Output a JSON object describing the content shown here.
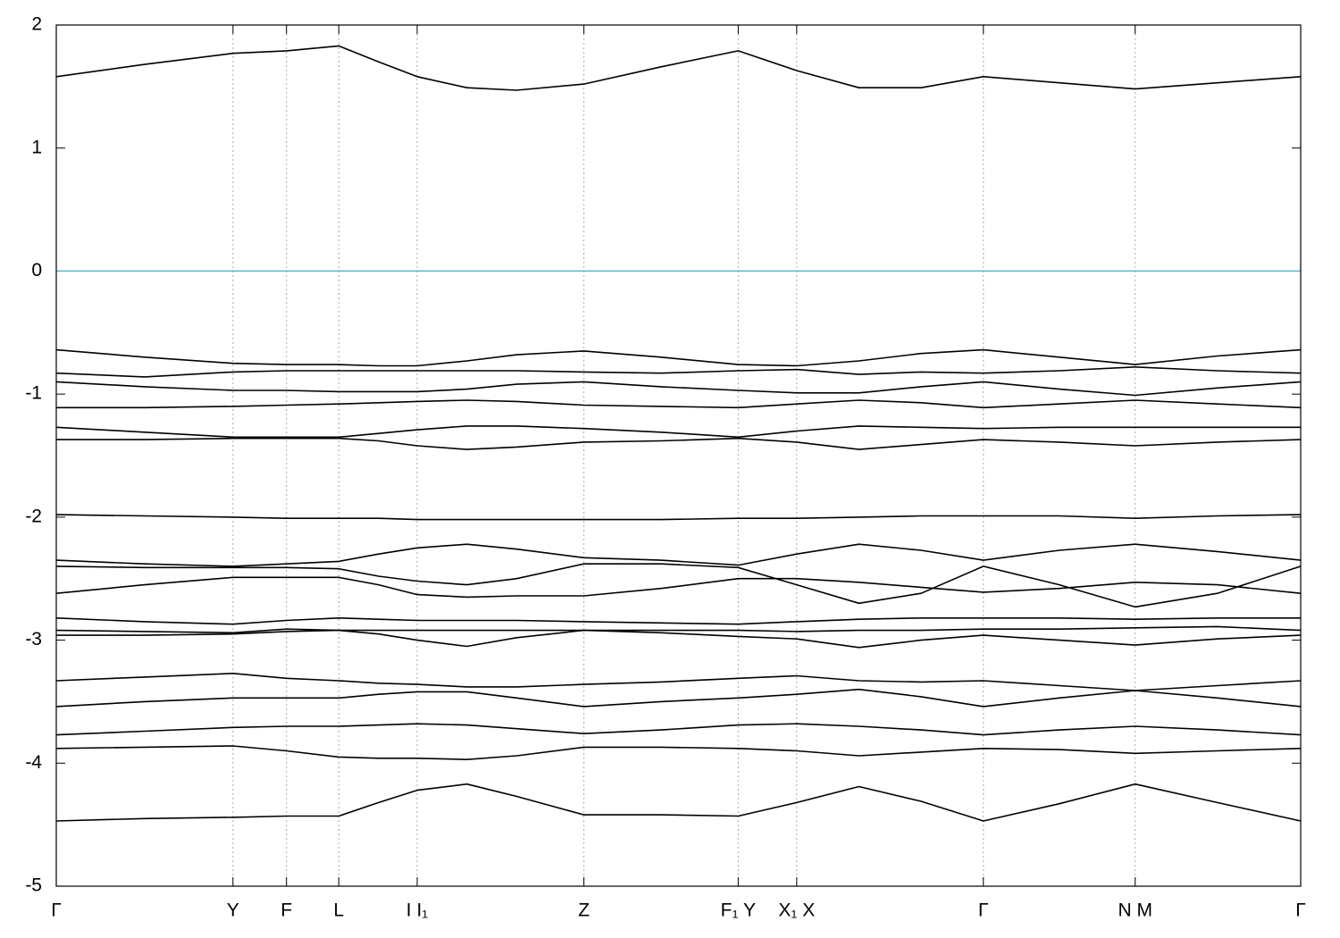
{
  "chart_data": {
    "type": "line",
    "x": [
      0,
      0.071,
      0.142,
      0.185,
      0.227,
      0.259,
      0.29,
      0.33,
      0.37,
      0.424,
      0.486,
      0.548,
      0.595,
      0.645,
      0.695,
      0.745,
      0.806,
      0.867,
      0.933,
      1
    ],
    "xlim": [
      0,
      1
    ],
    "xticks": [
      {
        "value": 0,
        "label": "Γ"
      },
      {
        "value": 0.142,
        "label": "Y"
      },
      {
        "value": 0.185,
        "label": "F"
      },
      {
        "value": 0.227,
        "label": "L"
      },
      {
        "value": 0.29,
        "label": "I  I₁"
      },
      {
        "value": 0.424,
        "label": "Z"
      },
      {
        "value": 0.548,
        "label": "F₁ Y"
      },
      {
        "value": 0.595,
        "label": "X₁ X"
      },
      {
        "value": 0.745,
        "label": "Γ"
      },
      {
        "value": 0.867,
        "label": "N M"
      },
      {
        "value": 1,
        "label": "Γ"
      }
    ],
    "ylim": [
      -5,
      2
    ],
    "yticks": [
      -5,
      -4,
      -3,
      -2,
      -1,
      0,
      1,
      2
    ],
    "grid": true,
    "line_color": "#000000",
    "hline": {
      "value": 0,
      "color": "#5fb4cc"
    },
    "series": [
      {
        "values": [
          1.58,
          1.68,
          1.77,
          1.79,
          1.83,
          1.7,
          1.58,
          1.49,
          1.47,
          1.52,
          1.66,
          1.79,
          1.63,
          1.49,
          1.49,
          1.58,
          1.53,
          1.48,
          1.53,
          1.58
        ]
      },
      {
        "values": [
          -0.64,
          -0.7,
          -0.75,
          -0.76,
          -0.76,
          -0.77,
          -0.77,
          -0.73,
          -0.68,
          -0.65,
          -0.7,
          -0.76,
          -0.77,
          -0.73,
          -0.67,
          -0.64,
          -0.7,
          -0.76,
          -0.69,
          -0.64
        ]
      },
      {
        "values": [
          -0.83,
          -0.86,
          -0.82,
          -0.81,
          -0.81,
          -0.81,
          -0.81,
          -0.81,
          -0.81,
          -0.82,
          -0.83,
          -0.81,
          -0.8,
          -0.84,
          -0.82,
          -0.83,
          -0.81,
          -0.78,
          -0.81,
          -0.83
        ]
      },
      {
        "values": [
          -0.9,
          -0.94,
          -0.97,
          -0.97,
          -0.98,
          -0.98,
          -0.98,
          -0.96,
          -0.92,
          -0.9,
          -0.94,
          -0.97,
          -0.99,
          -0.99,
          -0.94,
          -0.9,
          -0.96,
          -1.01,
          -0.95,
          -0.9
        ]
      },
      {
        "values": [
          -1.11,
          -1.11,
          -1.1,
          -1.09,
          -1.08,
          -1.07,
          -1.06,
          -1.05,
          -1.06,
          -1.09,
          -1.1,
          -1.11,
          -1.08,
          -1.05,
          -1.07,
          -1.11,
          -1.08,
          -1.05,
          -1.08,
          -1.11
        ]
      },
      {
        "values": [
          -1.27,
          -1.31,
          -1.35,
          -1.35,
          -1.35,
          -1.32,
          -1.29,
          -1.26,
          -1.26,
          -1.28,
          -1.31,
          -1.35,
          -1.3,
          -1.26,
          -1.27,
          -1.28,
          -1.27,
          -1.27,
          -1.27,
          -1.27
        ]
      },
      {
        "values": [
          -1.37,
          -1.37,
          -1.36,
          -1.36,
          -1.36,
          -1.38,
          -1.42,
          -1.45,
          -1.43,
          -1.39,
          -1.38,
          -1.36,
          -1.39,
          -1.45,
          -1.41,
          -1.37,
          -1.39,
          -1.42,
          -1.39,
          -1.37
        ]
      },
      {
        "values": [
          -1.98,
          -1.99,
          -2.0,
          -2.01,
          -2.01,
          -2.01,
          -2.02,
          -2.02,
          -2.02,
          -2.02,
          -2.02,
          -2.01,
          -2.01,
          -2.0,
          -1.99,
          -1.99,
          -1.99,
          -2.01,
          -1.99,
          -1.98
        ]
      },
      {
        "values": [
          -2.35,
          -2.38,
          -2.4,
          -2.38,
          -2.36,
          -2.3,
          -2.25,
          -2.22,
          -2.26,
          -2.33,
          -2.35,
          -2.39,
          -2.3,
          -2.22,
          -2.27,
          -2.35,
          -2.27,
          -2.22,
          -2.28,
          -2.35
        ]
      },
      {
        "values": [
          -2.4,
          -2.41,
          -2.41,
          -2.41,
          -2.42,
          -2.48,
          -2.52,
          -2.55,
          -2.5,
          -2.38,
          -2.38,
          -2.41,
          -2.55,
          -2.7,
          -2.62,
          -2.4,
          -2.55,
          -2.73,
          -2.62,
          -2.4
        ]
      },
      {
        "values": [
          -2.62,
          -2.55,
          -2.49,
          -2.49,
          -2.49,
          -2.55,
          -2.63,
          -2.65,
          -2.64,
          -2.64,
          -2.58,
          -2.5,
          -2.5,
          -2.53,
          -2.57,
          -2.61,
          -2.58,
          -2.53,
          -2.55,
          -2.62
        ]
      },
      {
        "values": [
          -2.82,
          -2.85,
          -2.87,
          -2.84,
          -2.82,
          -2.83,
          -2.84,
          -2.84,
          -2.84,
          -2.85,
          -2.86,
          -2.87,
          -2.85,
          -2.83,
          -2.82,
          -2.82,
          -2.82,
          -2.83,
          -2.82,
          -2.82
        ]
      },
      {
        "values": [
          -2.92,
          -2.93,
          -2.94,
          -2.91,
          -2.92,
          -2.92,
          -2.92,
          -2.92,
          -2.92,
          -2.92,
          -2.92,
          -2.92,
          -2.93,
          -2.92,
          -2.92,
          -2.91,
          -2.91,
          -2.9,
          -2.89,
          -2.92
        ]
      },
      {
        "values": [
          -2.96,
          -2.96,
          -2.95,
          -2.93,
          -2.92,
          -2.95,
          -3.0,
          -3.05,
          -2.98,
          -2.92,
          -2.94,
          -2.97,
          -2.99,
          -3.06,
          -3.0,
          -2.96,
          -3.0,
          -3.04,
          -2.99,
          -2.96
        ]
      },
      {
        "values": [
          -3.33,
          -3.3,
          -3.27,
          -3.31,
          -3.33,
          -3.35,
          -3.36,
          -3.38,
          -3.38,
          -3.36,
          -3.34,
          -3.31,
          -3.29,
          -3.33,
          -3.34,
          -3.33,
          -3.37,
          -3.41,
          -3.37,
          -3.33
        ]
      },
      {
        "values": [
          -3.54,
          -3.5,
          -3.47,
          -3.47,
          -3.47,
          -3.44,
          -3.42,
          -3.42,
          -3.47,
          -3.54,
          -3.5,
          -3.47,
          -3.44,
          -3.4,
          -3.46,
          -3.54,
          -3.47,
          -3.41,
          -3.47,
          -3.54
        ]
      },
      {
        "values": [
          -3.77,
          -3.74,
          -3.71,
          -3.7,
          -3.7,
          -3.69,
          -3.68,
          -3.69,
          -3.72,
          -3.76,
          -3.73,
          -3.69,
          -3.68,
          -3.7,
          -3.73,
          -3.77,
          -3.73,
          -3.7,
          -3.73,
          -3.77
        ]
      },
      {
        "values": [
          -3.88,
          -3.87,
          -3.86,
          -3.9,
          -3.95,
          -3.96,
          -3.96,
          -3.97,
          -3.94,
          -3.87,
          -3.87,
          -3.88,
          -3.9,
          -3.94,
          -3.91,
          -3.88,
          -3.89,
          -3.92,
          -3.9,
          -3.88
        ]
      },
      {
        "values": [
          -4.47,
          -4.45,
          -4.44,
          -4.43,
          -4.43,
          -4.32,
          -4.22,
          -4.17,
          -4.27,
          -4.42,
          -4.42,
          -4.43,
          -4.32,
          -4.19,
          -4.31,
          -4.47,
          -4.33,
          -4.17,
          -4.32,
          -4.47
        ]
      }
    ]
  }
}
